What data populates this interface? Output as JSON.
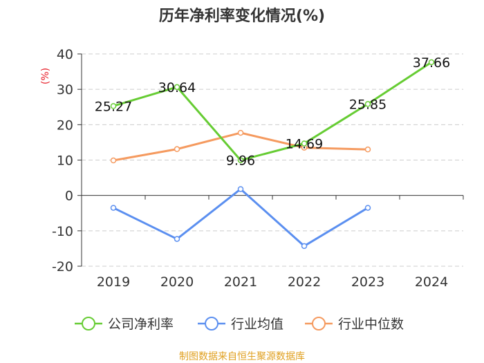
{
  "chart_data": {
    "type": "line",
    "title": "历年净利率变化情况(%)",
    "ylabel": "(%)",
    "categories": [
      "2019",
      "2020",
      "2021",
      "2022",
      "2023",
      "2024"
    ],
    "ylim": [
      -20,
      40
    ],
    "yticks": [
      40,
      30,
      20,
      10,
      0,
      -10,
      -20
    ],
    "ytick_labels": [
      "40",
      "30",
      "20",
      "10",
      "0",
      "-10",
      "-20"
    ],
    "grid": true,
    "legend_position": "bottom",
    "series": [
      {
        "name": "公司净利率",
        "color": "#66cc33",
        "values": [
          25.27,
          30.64,
          9.96,
          14.69,
          25.85,
          37.66
        ],
        "labels": [
          "25.27",
          "30.64",
          "9.96",
          "14.69",
          "25.85",
          "37.66"
        ]
      },
      {
        "name": "行业均值",
        "color": "#5b8ff0",
        "values": [
          -3.5,
          -12.3,
          1.8,
          -14.3,
          -3.5,
          null
        ]
      },
      {
        "name": "行业中位数",
        "color": "#f59a5f",
        "values": [
          9.9,
          13.1,
          17.7,
          13.5,
          13.0,
          null
        ]
      }
    ]
  },
  "colors": {
    "ylabel": "#e8202a",
    "source": "#e0a020"
  },
  "footer": {
    "source": "制图数据来自恒生聚源数据库"
  }
}
